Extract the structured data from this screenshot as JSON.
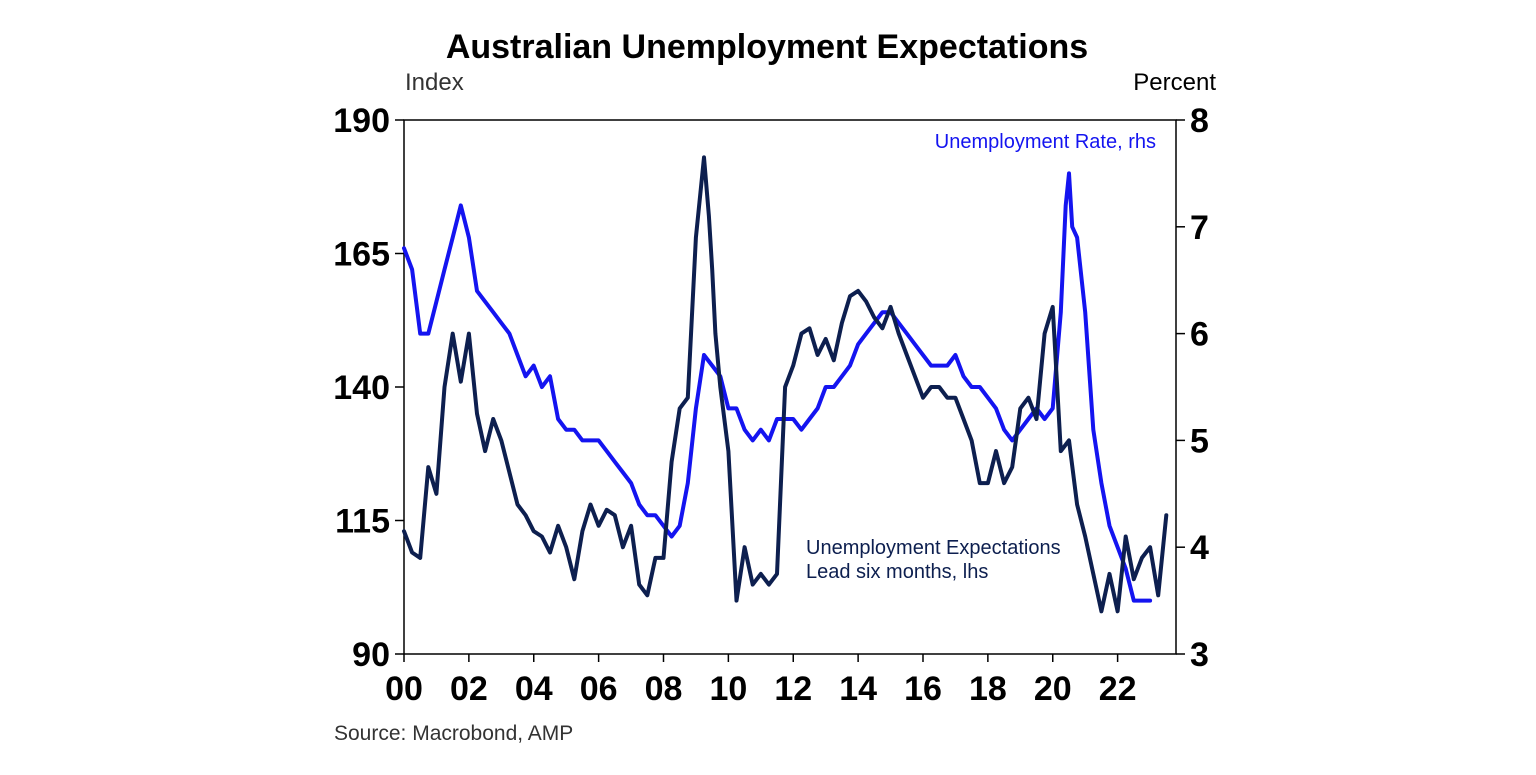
{
  "chart_data": {
    "type": "line",
    "title": "Australian Unemployment Expectations",
    "left_axis": {
      "unit_label": "Index",
      "ylim": [
        90,
        190
      ],
      "ticks": [
        90,
        115,
        140,
        165,
        190
      ]
    },
    "right_axis": {
      "unit_label": "Percent",
      "ylim": [
        3,
        8
      ],
      "ticks": [
        3,
        4,
        5,
        6,
        7,
        8
      ]
    },
    "x_axis": {
      "ticks": [
        {
          "label": "00",
          "x": 2000
        },
        {
          "label": "02",
          "x": 2002
        },
        {
          "label": "04",
          "x": 2004
        },
        {
          "label": "06",
          "x": 2006
        },
        {
          "label": "08",
          "x": 2008
        },
        {
          "label": "10",
          "x": 2010
        },
        {
          "label": "12",
          "x": 2012
        },
        {
          "label": "14",
          "x": 2014
        },
        {
          "label": "16",
          "x": 2016
        },
        {
          "label": "18",
          "x": 2018
        },
        {
          "label": "20",
          "x": 2020
        },
        {
          "label": "22",
          "x": 2022
        }
      ],
      "xlim": [
        2000,
        2023.8
      ]
    },
    "grid": false,
    "source": "Source: Macrobond, AMP",
    "series": [
      {
        "name": "Unemployment Rate, rhs",
        "axis": "right",
        "color": "#1414f0",
        "x": [
          2000.0,
          2000.25,
          2000.5,
          2000.75,
          2001.0,
          2001.25,
          2001.5,
          2001.75,
          2002.0,
          2002.25,
          2002.5,
          2002.75,
          2003.0,
          2003.25,
          2003.5,
          2003.75,
          2004.0,
          2004.25,
          2004.5,
          2004.75,
          2005.0,
          2005.25,
          2005.5,
          2005.75,
          2006.0,
          2006.25,
          2006.5,
          2006.75,
          2007.0,
          2007.25,
          2007.5,
          2007.75,
          2008.0,
          2008.25,
          2008.5,
          2008.75,
          2009.0,
          2009.25,
          2009.5,
          2009.75,
          2010.0,
          2010.25,
          2010.5,
          2010.75,
          2011.0,
          2011.25,
          2011.5,
          2011.75,
          2012.0,
          2012.25,
          2012.5,
          2012.75,
          2013.0,
          2013.25,
          2013.5,
          2013.75,
          2014.0,
          2014.25,
          2014.5,
          2014.75,
          2015.0,
          2015.25,
          2015.5,
          2015.75,
          2016.0,
          2016.25,
          2016.5,
          2016.75,
          2017.0,
          2017.25,
          2017.5,
          2017.75,
          2018.0,
          2018.25,
          2018.5,
          2018.75,
          2019.0,
          2019.25,
          2019.5,
          2019.75,
          2020.0,
          2020.25,
          2020.4,
          2020.5,
          2020.6,
          2020.75,
          2021.0,
          2021.25,
          2021.5,
          2021.75,
          2022.0,
          2022.25,
          2022.5,
          2022.75,
          2023.0
        ],
        "y": [
          6.8,
          6.6,
          6.0,
          6.0,
          6.3,
          6.6,
          6.9,
          7.2,
          6.9,
          6.4,
          6.3,
          6.2,
          6.1,
          6.0,
          5.8,
          5.6,
          5.7,
          5.5,
          5.6,
          5.2,
          5.1,
          5.1,
          5.0,
          5.0,
          5.0,
          4.9,
          4.8,
          4.7,
          4.6,
          4.4,
          4.3,
          4.3,
          4.2,
          4.1,
          4.2,
          4.6,
          5.3,
          5.8,
          5.7,
          5.6,
          5.3,
          5.3,
          5.1,
          5.0,
          5.1,
          5.0,
          5.2,
          5.2,
          5.2,
          5.1,
          5.2,
          5.3,
          5.5,
          5.5,
          5.6,
          5.7,
          5.9,
          6.0,
          6.1,
          6.2,
          6.2,
          6.1,
          6.0,
          5.9,
          5.8,
          5.7,
          5.7,
          5.7,
          5.8,
          5.6,
          5.5,
          5.5,
          5.4,
          5.3,
          5.1,
          5.0,
          5.1,
          5.2,
          5.3,
          5.2,
          5.3,
          6.2,
          7.2,
          7.5,
          7.0,
          6.9,
          6.2,
          5.1,
          4.6,
          4.2,
          4.0,
          3.8,
          3.5,
          3.5,
          3.5
        ]
      },
      {
        "name": "Unemployment Expectations Lead six months, lhs",
        "axis": "left",
        "color": "#0d1f4f",
        "x": [
          2000.0,
          2000.25,
          2000.5,
          2000.75,
          2001.0,
          2001.25,
          2001.5,
          2001.75,
          2002.0,
          2002.25,
          2002.5,
          2002.75,
          2003.0,
          2003.25,
          2003.5,
          2003.75,
          2004.0,
          2004.25,
          2004.5,
          2004.75,
          2005.0,
          2005.25,
          2005.5,
          2005.75,
          2006.0,
          2006.25,
          2006.5,
          2006.75,
          2007.0,
          2007.25,
          2007.5,
          2007.75,
          2008.0,
          2008.25,
          2008.5,
          2008.75,
          2009.0,
          2009.25,
          2009.4,
          2009.5,
          2009.6,
          2009.75,
          2010.0,
          2010.25,
          2010.5,
          2010.75,
          2011.0,
          2011.25,
          2011.5,
          2011.75,
          2012.0,
          2012.25,
          2012.5,
          2012.75,
          2013.0,
          2013.25,
          2013.5,
          2013.75,
          2014.0,
          2014.25,
          2014.5,
          2014.75,
          2015.0,
          2015.25,
          2015.5,
          2015.75,
          2016.0,
          2016.25,
          2016.5,
          2016.75,
          2017.0,
          2017.25,
          2017.5,
          2017.75,
          2018.0,
          2018.25,
          2018.5,
          2018.75,
          2019.0,
          2019.25,
          2019.5,
          2019.75,
          2020.0,
          2020.25,
          2020.5,
          2020.75,
          2021.0,
          2021.25,
          2021.5,
          2021.75,
          2022.0,
          2022.25,
          2022.5,
          2022.75,
          2023.0,
          2023.25,
          2023.5
        ],
        "y": [
          113,
          109,
          108,
          125,
          120,
          140,
          150,
          141,
          150,
          135,
          128,
          134,
          130,
          124,
          118,
          116,
          113,
          112,
          109,
          114,
          110,
          104,
          113,
          118,
          114,
          117,
          116,
          110,
          114,
          103,
          101,
          108,
          108,
          126,
          136,
          138,
          168,
          183,
          172,
          162,
          150,
          140,
          128,
          100,
          110,
          103,
          105,
          103,
          105,
          140,
          144,
          150,
          151,
          146,
          149,
          145,
          152,
          157,
          158,
          156,
          153,
          151,
          155,
          150,
          146,
          142,
          138,
          140,
          140,
          138,
          138,
          134,
          130,
          122,
          122,
          128,
          122,
          125,
          136,
          138,
          134,
          150,
          155,
          128,
          130,
          118,
          112,
          105,
          98,
          105,
          98,
          112,
          104,
          108,
          110,
          101,
          116
        ]
      }
    ],
    "annotations": [
      {
        "text": "Unemployment Rate, rhs",
        "color": "#1414f0"
      },
      {
        "lines": [
          "Unemployment Expectations",
          "Lead six months, lhs"
        ],
        "color": "#0d1f4f"
      }
    ]
  }
}
